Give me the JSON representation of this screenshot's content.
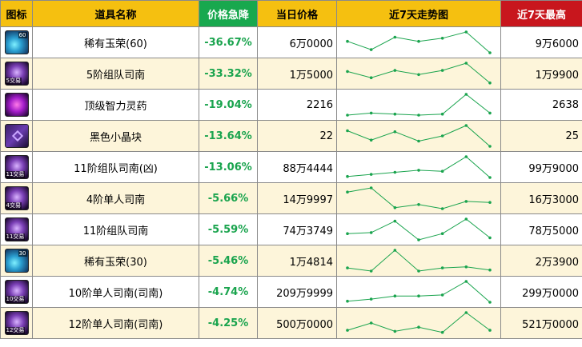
{
  "header": {
    "icon": "图标",
    "name": "道具名称",
    "drop": "价格急降",
    "price": "当日价格",
    "trend": "近7天走势图",
    "high": "近7天最高"
  },
  "colors": {
    "header_bg": "#f5c010",
    "drop_header_bg": "#18a84e",
    "high_header_bg": "#c8161d",
    "drop_text": "#1aa44e",
    "row_alt_bg": "#fdf5da",
    "trend_line": "#1aa44e"
  },
  "rows": [
    {
      "icon": "jade-icon",
      "icon_lvl": "60",
      "icon_tag": "",
      "name": "稀有玉荣(60)",
      "drop": "-36.67%",
      "price": "6万0000",
      "high": "9万6000",
      "trend": [
        0.55,
        0.15,
        0.75,
        0.55,
        0.7,
        1.0,
        0.0
      ]
    },
    {
      "icon": "scroll-icon",
      "icon_lvl": "",
      "icon_tag": "5交易",
      "name": "5阶组队司南",
      "drop": "-33.32%",
      "price": "1万5000",
      "high": "1万9900",
      "trend": [
        0.6,
        0.3,
        0.65,
        0.45,
        0.65,
        1.0,
        0.05
      ]
    },
    {
      "icon": "potion-icon",
      "icon_lvl": "",
      "icon_tag": "",
      "name": "顶级智力灵药",
      "drop": "-19.04%",
      "price": "2216",
      "high": "2638",
      "trend": [
        0.0,
        0.1,
        0.05,
        0.0,
        0.05,
        1.0,
        0.1
      ]
    },
    {
      "icon": "crystal-icon",
      "icon_lvl": "",
      "icon_tag": "",
      "name": "黑色小晶块",
      "drop": "-13.64%",
      "price": "22",
      "high": "25",
      "trend": [
        0.75,
        0.3,
        0.7,
        0.25,
        0.5,
        1.0,
        0.0
      ]
    },
    {
      "icon": "scroll-icon",
      "icon_lvl": "",
      "icon_tag": "11交易",
      "name": "11阶组队司南(凶)",
      "drop": "-13.06%",
      "price": "88万4444",
      "high": "99万9000",
      "trend": [
        0.05,
        0.15,
        0.25,
        0.35,
        0.3,
        1.0,
        0.0
      ]
    },
    {
      "icon": "scroll-icon",
      "icon_lvl": "",
      "icon_tag": "4交易",
      "name": "4阶单人司南",
      "drop": "-5.66%",
      "price": "14万9997",
      "high": "16万3000",
      "trend": [
        0.8,
        1.0,
        0.05,
        0.2,
        0.0,
        0.35,
        0.3
      ]
    },
    {
      "icon": "scroll-icon",
      "icon_lvl": "",
      "icon_tag": "11交易",
      "name": "11阶组队司南",
      "drop": "-5.59%",
      "price": "74万3749",
      "high": "78万5000",
      "trend": [
        0.3,
        0.35,
        0.9,
        0.0,
        0.3,
        1.0,
        0.1
      ]
    },
    {
      "icon": "jade-icon",
      "icon_lvl": "30",
      "icon_tag": "",
      "name": "稀有玉荣(30)",
      "drop": "-5.46%",
      "price": "1万4814",
      "high": "2万3900",
      "trend": [
        0.15,
        0.0,
        1.0,
        0.0,
        0.15,
        0.2,
        0.05
      ]
    },
    {
      "icon": "scroll-icon",
      "icon_lvl": "",
      "icon_tag": "10交易",
      "name": "10阶单人司南(司南)",
      "drop": "-4.74%",
      "price": "209万9999",
      "high": "299万0000",
      "trend": [
        0.05,
        0.15,
        0.3,
        0.3,
        0.35,
        1.0,
        0.0
      ]
    },
    {
      "icon": "scroll-icon",
      "icon_lvl": "",
      "icon_tag": "12交易",
      "name": "12阶单人司南(司南)",
      "drop": "-4.25%",
      "price": "500万0000",
      "high": "521万0000",
      "trend": [
        0.15,
        0.5,
        0.1,
        0.3,
        0.05,
        1.0,
        0.15
      ]
    }
  ]
}
